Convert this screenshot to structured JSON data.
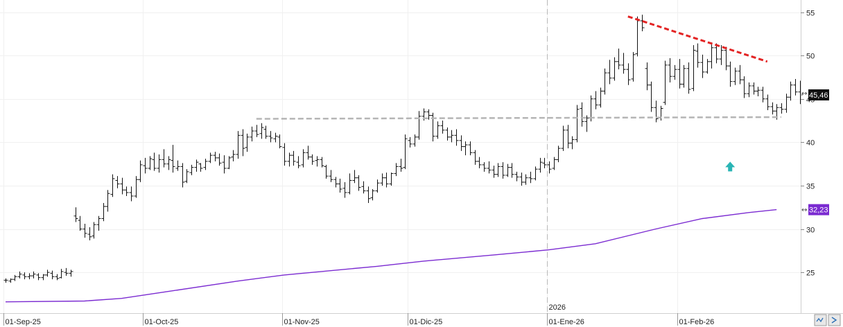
{
  "chart_data": {
    "type": "ohlc",
    "y_axis": {
      "ticks": [
        25,
        30,
        35,
        40,
        45,
        50,
        55
      ],
      "tick_labels": [
        "25",
        "30",
        "35",
        "40",
        "45",
        "50",
        "55"
      ],
      "ylim": [
        20.3,
        56.4
      ],
      "side": "right"
    },
    "x_axis": {
      "tick_labels": [
        "01-Sep-25",
        "01-Oct-25",
        "01-Nov-25",
        "01-Dic-25",
        "01-Ene-26",
        "01-Feb-26"
      ],
      "tick_bar_index": [
        0,
        30,
        60,
        87,
        117,
        145
      ],
      "year_divider": {
        "label": "2026",
        "bar_index": 117
      }
    },
    "last_price": {
      "label": "45,46",
      "value": 45.46
    },
    "moving_average": {
      "label": "32,23",
      "value": 32.23,
      "color": "#7b2bd1",
      "points": [
        [
          0,
          21.6
        ],
        [
          17,
          21.7
        ],
        [
          25,
          22.0
        ],
        [
          35,
          22.8
        ],
        [
          50,
          24.0
        ],
        [
          60,
          24.7
        ],
        [
          80,
          25.7
        ],
        [
          90,
          26.3
        ],
        [
          105,
          27.0
        ],
        [
          117,
          27.6
        ],
        [
          127,
          28.3
        ],
        [
          140,
          30.0
        ],
        [
          150,
          31.2
        ],
        [
          160,
          31.9
        ],
        [
          166,
          32.23
        ]
      ]
    },
    "annotations": [
      {
        "type": "trendline",
        "color": "#e32424",
        "style": "dashed",
        "from": [
          134,
          54.5
        ],
        "to": [
          164,
          49.3
        ]
      },
      {
        "type": "support",
        "color": "#b5b5b5",
        "style": "dashed",
        "from": [
          54,
          42.7
        ],
        "to": [
          167,
          42.9
        ]
      },
      {
        "type": "arrow-up",
        "color": "#2ab5b5",
        "at": [
          156,
          37.2
        ]
      }
    ],
    "bars": [
      [
        24.1,
        24.3,
        23.8,
        24.1
      ],
      [
        24.0,
        24.3,
        23.8,
        24.2
      ],
      [
        24.2,
        24.7,
        24.0,
        24.5
      ],
      [
        24.5,
        25.1,
        24.3,
        24.8
      ],
      [
        24.7,
        25.0,
        24.2,
        24.5
      ],
      [
        24.5,
        24.9,
        24.2,
        24.6
      ],
      [
        24.6,
        25.1,
        24.3,
        24.8
      ],
      [
        24.7,
        24.9,
        24.1,
        24.4
      ],
      [
        24.4,
        24.8,
        24.1,
        24.7
      ],
      [
        24.7,
        25.3,
        24.5,
        25.0
      ],
      [
        24.9,
        25.2,
        24.2,
        24.5
      ],
      [
        24.5,
        24.8,
        24.1,
        24.3
      ],
      [
        24.4,
        25.4,
        24.3,
        25.1
      ],
      [
        25.0,
        25.5,
        24.6,
        24.9
      ],
      [
        24.9,
        25.3,
        24.5,
        25.1
      ],
      [
        31.5,
        32.5,
        30.8,
        31.2
      ],
      [
        31.0,
        31.5,
        29.8,
        30.0
      ],
      [
        30.0,
        30.6,
        29.0,
        29.5
      ],
      [
        29.4,
        30.2,
        28.7,
        29.1
      ],
      [
        29.2,
        30.8,
        28.9,
        30.5
      ],
      [
        30.5,
        31.5,
        29.8,
        31.2
      ],
      [
        31.2,
        33.0,
        30.9,
        32.6
      ],
      [
        32.6,
        34.5,
        32.0,
        34.1
      ],
      [
        34.0,
        36.3,
        33.7,
        35.8
      ],
      [
        35.6,
        36.1,
        34.7,
        35.2
      ],
      [
        35.2,
        35.9,
        34.0,
        34.5
      ],
      [
        34.5,
        34.9,
        33.8,
        34.2
      ],
      [
        34.2,
        34.9,
        33.2,
        33.8
      ],
      [
        33.8,
        36.1,
        33.6,
        35.7
      ],
      [
        35.7,
        37.9,
        35.4,
        37.4
      ],
      [
        37.3,
        38.2,
        36.4,
        37.0
      ],
      [
        37.0,
        38.4,
        36.8,
        38.1
      ],
      [
        38.0,
        38.8,
        36.7,
        37.0
      ],
      [
        37.0,
        38.6,
        36.5,
        38.0
      ],
      [
        38.0,
        39.2,
        37.1,
        37.5
      ],
      [
        37.5,
        38.4,
        36.8,
        38.0
      ],
      [
        37.9,
        39.7,
        36.5,
        37.2
      ],
      [
        37.0,
        37.9,
        36.7,
        37.2
      ],
      [
        37.2,
        37.6,
        34.8,
        35.4
      ],
      [
        35.5,
        36.9,
        35.3,
        36.6
      ],
      [
        36.5,
        37.4,
        36.2,
        37.1
      ],
      [
        37.1,
        38.0,
        36.6,
        37.7
      ],
      [
        37.5,
        37.6,
        36.6,
        37.0
      ],
      [
        37.1,
        38.1,
        36.8,
        37.8
      ],
      [
        37.8,
        38.8,
        37.6,
        38.5
      ],
      [
        38.5,
        38.9,
        37.8,
        38.2
      ],
      [
        38.2,
        38.7,
        37.3,
        37.6
      ],
      [
        37.7,
        38.5,
        36.4,
        37.0
      ],
      [
        37.0,
        38.4,
        36.9,
        38.2
      ],
      [
        38.3,
        39.1,
        37.8,
        38.6
      ],
      [
        38.6,
        41.3,
        38.1,
        40.8
      ],
      [
        40.8,
        41.5,
        38.4,
        39.3
      ],
      [
        39.4,
        41.0,
        38.9,
        40.6
      ],
      [
        40.6,
        41.8,
        40.1,
        41.3
      ],
      [
        41.3,
        42.0,
        40.6,
        40.9
      ],
      [
        41.0,
        42.2,
        40.4,
        41.7
      ],
      [
        41.5,
        41.9,
        40.4,
        40.7
      ],
      [
        40.7,
        41.3,
        40.0,
        40.5
      ],
      [
        40.4,
        41.1,
        40.0,
        40.7
      ],
      [
        40.6,
        40.9,
        39.3,
        39.5
      ],
      [
        39.4,
        39.9,
        37.3,
        37.8
      ],
      [
        37.8,
        38.8,
        37.2,
        38.5
      ],
      [
        38.5,
        39.0,
        37.3,
        37.8
      ],
      [
        37.7,
        38.4,
        37.0,
        37.3
      ],
      [
        37.4,
        39.2,
        37.1,
        38.8
      ],
      [
        38.8,
        39.6,
        38.0,
        38.3
      ],
      [
        38.3,
        38.6,
        37.4,
        37.8
      ],
      [
        37.9,
        38.4,
        37.2,
        38.0
      ],
      [
        38.0,
        38.3,
        37.1,
        37.3
      ],
      [
        37.2,
        37.4,
        35.8,
        36.1
      ],
      [
        36.1,
        36.8,
        35.4,
        35.7
      ],
      [
        35.7,
        36.0,
        34.8,
        35.2
      ],
      [
        35.2,
        35.8,
        34.2,
        34.6
      ],
      [
        34.7,
        35.4,
        33.6,
        34.2
      ],
      [
        34.2,
        36.4,
        34.0,
        35.6
      ],
      [
        35.6,
        36.8,
        35.3,
        35.9
      ],
      [
        35.9,
        36.2,
        34.4,
        34.8
      ],
      [
        34.9,
        35.5,
        34.1,
        34.4
      ],
      [
        34.4,
        34.9,
        33.0,
        33.5
      ],
      [
        33.6,
        34.6,
        33.3,
        34.4
      ],
      [
        34.4,
        35.7,
        34.2,
        35.3
      ],
      [
        35.3,
        36.4,
        35.0,
        35.9
      ],
      [
        35.9,
        36.5,
        34.8,
        35.2
      ],
      [
        35.2,
        36.5,
        35.0,
        36.4
      ],
      [
        36.4,
        37.6,
        36.1,
        37.2
      ],
      [
        37.2,
        38.1,
        36.6,
        37.0
      ],
      [
        37.1,
        40.9,
        36.9,
        40.4
      ],
      [
        40.2,
        40.6,
        39.4,
        39.8
      ],
      [
        39.8,
        40.9,
        39.5,
        40.6
      ],
      [
        40.6,
        43.6,
        40.3,
        43.0
      ],
      [
        43.0,
        43.9,
        42.5,
        43.5
      ],
      [
        43.5,
        43.8,
        42.6,
        43.1
      ],
      [
        43.1,
        43.4,
        40.1,
        40.7
      ],
      [
        40.7,
        42.4,
        40.4,
        41.9
      ],
      [
        41.9,
        42.5,
        41.0,
        41.4
      ],
      [
        41.4,
        41.7,
        40.2,
        40.6
      ],
      [
        40.6,
        41.4,
        40.0,
        40.8
      ],
      [
        40.8,
        41.5,
        39.6,
        40.2
      ],
      [
        40.2,
        40.8,
        39.0,
        39.5
      ],
      [
        39.5,
        40.1,
        38.5,
        39.7
      ],
      [
        39.7,
        40.1,
        38.5,
        38.8
      ],
      [
        38.8,
        39.1,
        37.4,
        37.8
      ],
      [
        37.8,
        38.3,
        37.0,
        37.4
      ],
      [
        37.4,
        37.7,
        36.6,
        37.0
      ],
      [
        37.0,
        37.8,
        36.4,
        36.8
      ],
      [
        36.8,
        37.3,
        35.9,
        36.3
      ],
      [
        36.3,
        37.6,
        36.0,
        37.2
      ],
      [
        37.2,
        37.7,
        35.8,
        36.2
      ],
      [
        36.2,
        37.5,
        36.0,
        37.1
      ],
      [
        37.1,
        37.6,
        35.9,
        36.3
      ],
      [
        36.3,
        36.6,
        35.5,
        36.0
      ],
      [
        36.0,
        36.5,
        35.0,
        35.4
      ],
      [
        35.4,
        36.3,
        35.1,
        35.9
      ],
      [
        35.9,
        36.6,
        35.3,
        35.8
      ],
      [
        35.8,
        37.2,
        35.6,
        36.9
      ],
      [
        36.9,
        38.2,
        36.5,
        37.7
      ],
      [
        37.6,
        38.2,
        37.0,
        37.4
      ],
      [
        37.4,
        37.8,
        36.4,
        36.9
      ],
      [
        37.0,
        38.3,
        36.8,
        38.0
      ],
      [
        38.0,
        39.6,
        37.7,
        39.3
      ],
      [
        39.3,
        41.9,
        39.0,
        41.4
      ],
      [
        41.4,
        42.0,
        39.3,
        39.9
      ],
      [
        39.9,
        40.7,
        39.2,
        40.3
      ],
      [
        40.3,
        44.3,
        40.0,
        43.8
      ],
      [
        43.9,
        44.6,
        41.8,
        42.4
      ],
      [
        42.4,
        43.1,
        41.2,
        42.8
      ],
      [
        42.8,
        45.4,
        42.4,
        45.0
      ],
      [
        45.0,
        45.9,
        43.8,
        44.3
      ],
      [
        44.3,
        46.3,
        44.0,
        45.9
      ],
      [
        45.9,
        48.5,
        45.5,
        48.0
      ],
      [
        48.0,
        49.5,
        46.7,
        47.4
      ],
      [
        47.4,
        49.8,
        47.1,
        49.3
      ],
      [
        49.3,
        50.8,
        48.4,
        48.9
      ],
      [
        48.9,
        50.3,
        47.9,
        48.4
      ],
      [
        48.4,
        49.1,
        46.6,
        47.2
      ],
      [
        47.3,
        50.4,
        47.0,
        50.1
      ],
      [
        50.2,
        54.5,
        49.9,
        54.0
      ],
      [
        54.0,
        54.7,
        52.8,
        53.2
      ],
      [
        48.5,
        49.2,
        46.0,
        46.6
      ],
      [
        46.6,
        47.0,
        43.5,
        44.0
      ],
      [
        44.0,
        44.8,
        42.3,
        42.7
      ],
      [
        42.8,
        44.2,
        42.5,
        43.9
      ],
      [
        44.6,
        49.4,
        44.3,
        48.9
      ],
      [
        48.9,
        49.7,
        46.9,
        47.6
      ],
      [
        47.6,
        48.9,
        47.2,
        48.4
      ],
      [
        48.4,
        49.6,
        46.2,
        46.7
      ],
      [
        46.7,
        48.9,
        46.3,
        48.5
      ],
      [
        48.5,
        49.2,
        45.6,
        46.1
      ],
      [
        46.2,
        51.2,
        45.9,
        50.6
      ],
      [
        50.5,
        51.4,
        48.6,
        49.2
      ],
      [
        49.2,
        50.1,
        47.4,
        48.1
      ],
      [
        48.1,
        49.6,
        47.9,
        49.3
      ],
      [
        49.3,
        51.5,
        48.5,
        50.9
      ],
      [
        50.9,
        51.4,
        49.1,
        49.6
      ],
      [
        49.6,
        51.2,
        48.9,
        50.6
      ],
      [
        50.6,
        51.0,
        48.3,
        48.8
      ],
      [
        48.8,
        49.3,
        46.4,
        47.0
      ],
      [
        47.0,
        48.6,
        46.6,
        48.2
      ],
      [
        48.2,
        48.9,
        46.7,
        47.2
      ],
      [
        47.2,
        47.6,
        45.1,
        45.6
      ],
      [
        45.6,
        46.9,
        45.2,
        46.5
      ],
      [
        46.5,
        46.9,
        45.5,
        45.9
      ],
      [
        45.9,
        46.4,
        45.3,
        46.0
      ],
      [
        46.0,
        46.4,
        44.6,
        45.0
      ],
      [
        45.0,
        45.5,
        43.7,
        44.1
      ],
      [
        44.1,
        44.6,
        43.2,
        43.6
      ],
      [
        43.6,
        44.4,
        42.6,
        44.0
      ],
      [
        44.0,
        44.5,
        43.3,
        43.8
      ],
      [
        43.8,
        45.6,
        43.4,
        45.2
      ],
      [
        45.2,
        47.0,
        44.8,
        46.6
      ],
      [
        46.6,
        47.3,
        45.4,
        45.8
      ],
      [
        45.8,
        47.1,
        44.4,
        45.46
      ]
    ]
  }
}
